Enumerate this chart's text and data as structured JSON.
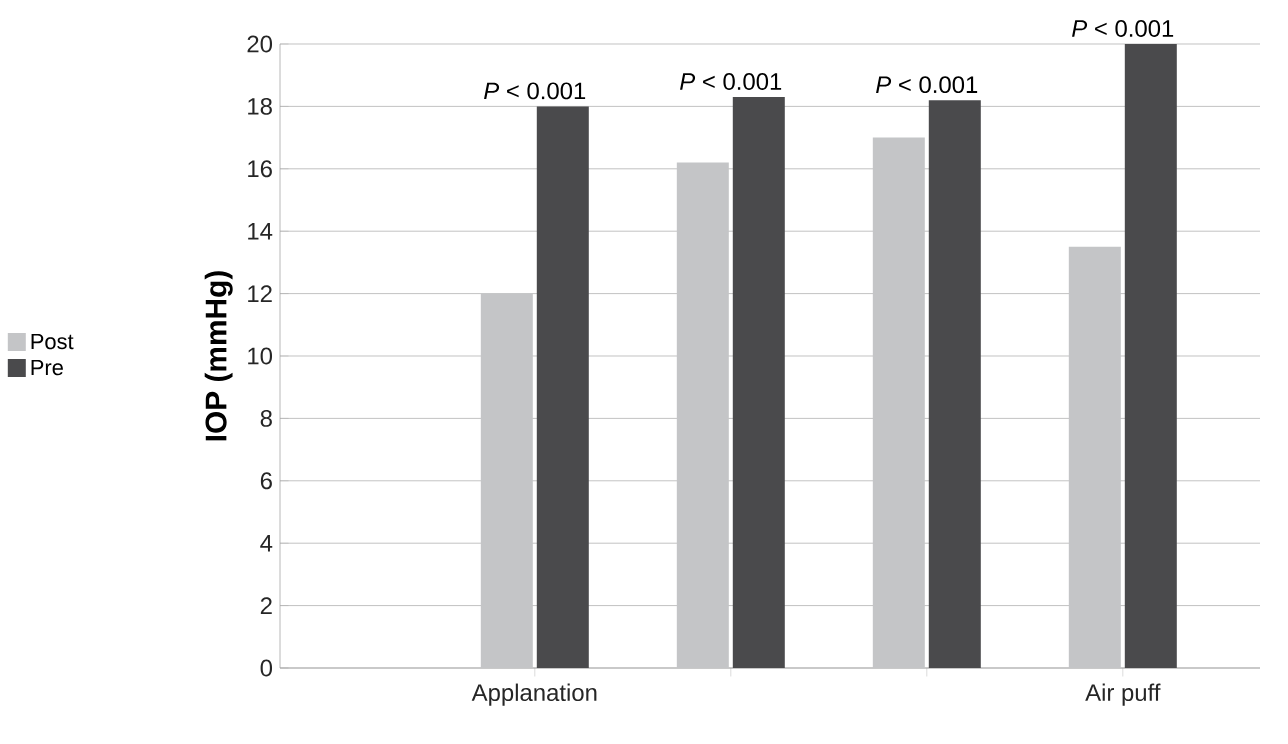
{
  "chart_data": {
    "type": "bar",
    "ylabel": "IOP (mmHg)",
    "categories": [
      "Applanation",
      null,
      null,
      "Air puff"
    ],
    "series": [
      {
        "name": "Post",
        "color": "#c4c5c7",
        "values": [
          12,
          16.2,
          17,
          13.5
        ]
      },
      {
        "name": "Pre",
        "color": "#4a4a4c",
        "values": [
          18,
          18.3,
          18.2,
          20
        ]
      }
    ],
    "ylim": [
      0,
      20
    ],
    "yticks": [
      0,
      2,
      4,
      6,
      8,
      10,
      12,
      14,
      16,
      18,
      20
    ],
    "grid": "y",
    "legend": "left",
    "annotations": [
      {
        "text": "*P* < 0.001",
        "y": 18
      },
      {
        "text": "*P* < 0.001",
        "y": 18.3
      },
      {
        "text": "*P* < 0.001",
        "y": 18.2
      },
      {
        "text": "*P* < 0.001",
        "y": 20
      }
    ]
  }
}
